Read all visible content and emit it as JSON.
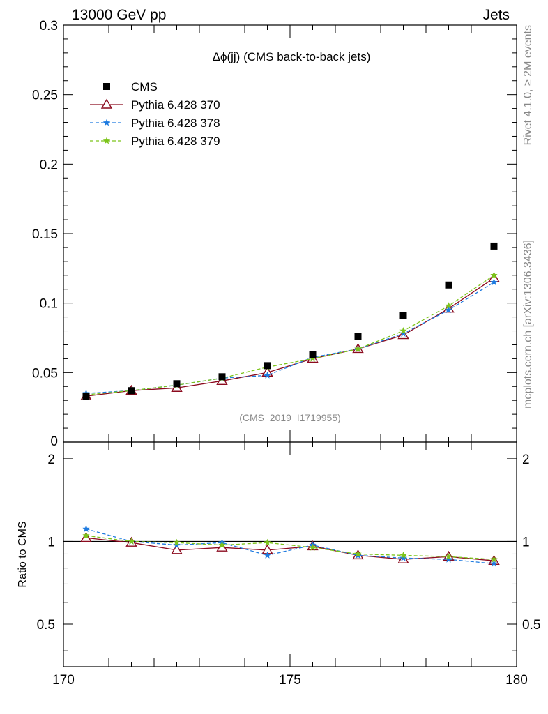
{
  "header": {
    "left": "13000 GeV pp",
    "right": "Jets"
  },
  "side_labels": {
    "rivet": "Rivet 4.1.0, ≥ 2M events",
    "mcplots": "mcplots.cern.ch [arXiv:1306.3436]"
  },
  "chart_data": [
    {
      "type": "line",
      "panel": "main",
      "title": "Δϕ(jj) (CMS back-to-back jets)",
      "analysis_tag": "(CMS_2019_I1719955)",
      "xlabel": "",
      "ylabel": "",
      "xlim": [
        170,
        180
      ],
      "ylim": [
        0,
        0.3
      ],
      "yticks": [
        "0",
        "0.05",
        "0.1",
        "0.15",
        "0.2",
        "0.25",
        "0.3"
      ],
      "legend_position": "top-left",
      "x": [
        170.5,
        171.5,
        172.5,
        173.5,
        174.5,
        175.5,
        176.5,
        177.5,
        178.5,
        179.5
      ],
      "series": [
        {
          "name": "CMS",
          "style": "marker",
          "color": "#000000",
          "values": [
            0.033,
            0.037,
            0.042,
            0.047,
            0.055,
            0.063,
            0.076,
            0.091,
            0.113,
            0.141
          ]
        },
        {
          "name": "Pythia 6.428 370",
          "style": "solid",
          "marker": "triangle",
          "color": "#8b0a1e",
          "values": [
            0.033,
            0.037,
            0.039,
            0.044,
            0.05,
            0.06,
            0.067,
            0.077,
            0.096,
            0.118
          ]
        },
        {
          "name": "Pythia 6.428 378",
          "style": "dashed",
          "marker": "star",
          "color": "#1e7be0",
          "values": [
            0.035,
            0.037,
            0.041,
            0.046,
            0.048,
            0.061,
            0.067,
            0.078,
            0.095,
            0.115
          ]
        },
        {
          "name": "Pythia 6.428 379",
          "style": "dashed",
          "marker": "star",
          "color": "#7cc41a",
          "values": [
            0.034,
            0.037,
            0.041,
            0.046,
            0.054,
            0.06,
            0.067,
            0.08,
            0.098,
            0.12
          ]
        }
      ]
    },
    {
      "type": "line",
      "panel": "ratio",
      "ylabel": "Ratio to CMS",
      "xlim": [
        170,
        180
      ],
      "ylim": [
        0.35,
        2.3
      ],
      "yticks": [
        "0.5",
        "1",
        "2"
      ],
      "xticks": [
        "170",
        "175",
        "180"
      ],
      "x": [
        170.5,
        171.5,
        172.5,
        173.5,
        174.5,
        175.5,
        176.5,
        177.5,
        178.5,
        179.5
      ],
      "series": [
        {
          "name": "Pythia 6.428 370",
          "style": "solid",
          "marker": "triangle",
          "color": "#8b0a1e",
          "values": [
            1.03,
            0.99,
            0.93,
            0.95,
            0.93,
            0.96,
            0.89,
            0.86,
            0.88,
            0.85
          ]
        },
        {
          "name": "Pythia 6.428 378",
          "style": "dashed",
          "marker": "star",
          "color": "#1e7be0",
          "values": [
            1.11,
            1.0,
            0.97,
            0.99,
            0.89,
            0.97,
            0.89,
            0.87,
            0.86,
            0.83
          ]
        },
        {
          "name": "Pythia 6.428 379",
          "style": "dashed",
          "marker": "star",
          "color": "#7cc41a",
          "values": [
            1.05,
            1.0,
            0.99,
            0.97,
            0.99,
            0.95,
            0.9,
            0.89,
            0.88,
            0.86
          ]
        }
      ]
    }
  ]
}
